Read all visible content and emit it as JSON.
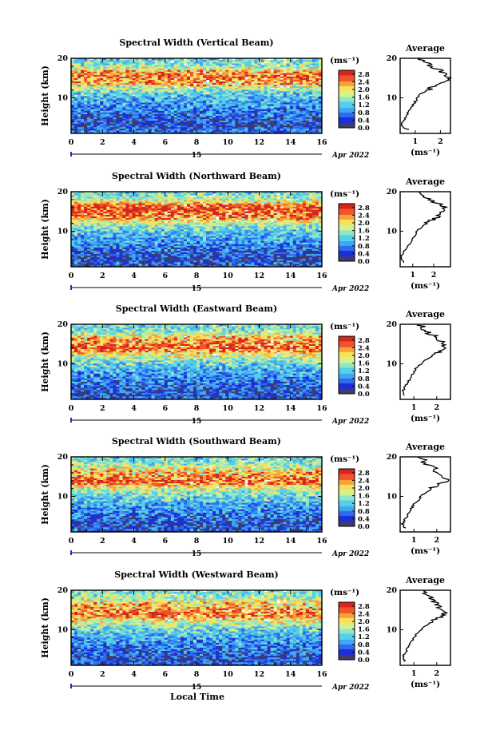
{
  "figure": {
    "x_axis_label": "Local Time",
    "date_label": "Apr 2022",
    "day_label": "15",
    "colorbar_unit": "(ms⁻¹)",
    "colorbar_ticks": [
      "0.0",
      "0.4",
      "0.8",
      "1.2",
      "1.6",
      "2.0",
      "2.4",
      "2.8"
    ],
    "colormap": [
      "#3d3d6b",
      "#1f2fd6",
      "#2d6df0",
      "#3fa8f2",
      "#55d0ea",
      "#8ee8c8",
      "#d8f08a",
      "#f8e058",
      "#f9a23a",
      "#f0552a",
      "#d8241f"
    ],
    "height_ylabel": "Height (km)",
    "height_ticks": [
      "10",
      "20"
    ],
    "time_ticks": [
      "0",
      "2",
      "4",
      "6",
      "8",
      "10",
      "12",
      "14",
      "16"
    ],
    "average_title": "Average",
    "average_unit": "(ms⁻¹)",
    "average_ticks": [
      "1",
      "2"
    ],
    "average_line_color": "#000000"
  },
  "chart_data": [
    {
      "type": "heatmap",
      "title": "Spectral Width (Vertical Beam)",
      "xlabel": "Local Time",
      "ylabel": "Height (km)",
      "xlim": [
        0,
        16
      ],
      "ylim": [
        1,
        20
      ],
      "clim": [
        0.0,
        3.0
      ],
      "x_ticks": [
        0,
        2,
        4,
        6,
        8,
        10,
        12,
        14,
        16
      ],
      "y_ticks": [
        10,
        20
      ],
      "colorbar_ticks": [
        0.0,
        0.4,
        0.8,
        1.2,
        1.6,
        2.0,
        2.4,
        2.8
      ],
      "profile_heights": [
        2,
        3,
        4,
        5,
        6,
        7,
        8,
        9,
        10,
        11,
        12,
        13,
        14,
        15,
        16,
        17,
        18,
        19,
        20
      ],
      "profile": [
        0.7,
        0.4,
        0.5,
        0.6,
        0.7,
        0.8,
        0.9,
        1.0,
        1.1,
        1.2,
        1.5,
        1.8,
        2.1,
        2.3,
        2.2,
        2.0,
        1.6,
        1.4,
        1.2
      ],
      "average": {
        "title": "Average",
        "xlim": [
          0.4,
          2.4
        ],
        "x_ticks": [
          1,
          2
        ],
        "xlabel": "(ms⁻¹)"
      }
    },
    {
      "type": "heatmap",
      "title": "Spectral Width (Northward Beam)",
      "xlabel": "Local Time",
      "ylabel": "Height (km)",
      "xlim": [
        0,
        16
      ],
      "ylim": [
        1,
        20
      ],
      "clim": [
        0.0,
        3.0
      ],
      "x_ticks": [
        0,
        2,
        4,
        6,
        8,
        10,
        12,
        14,
        16
      ],
      "y_ticks": [
        10,
        20
      ],
      "colorbar_ticks": [
        0.0,
        0.4,
        0.8,
        1.2,
        1.6,
        2.0,
        2.4,
        2.8
      ],
      "profile_heights": [
        2,
        3,
        4,
        5,
        6,
        7,
        8,
        9,
        10,
        11,
        12,
        13,
        14,
        15,
        16,
        17,
        18,
        19,
        20
      ],
      "profile": [
        0.6,
        0.4,
        0.5,
        0.6,
        0.7,
        0.9,
        1.0,
        1.1,
        1.2,
        1.4,
        1.7,
        2.0,
        2.3,
        2.5,
        2.6,
        2.2,
        1.7,
        1.5,
        1.3
      ],
      "average": {
        "title": "Average",
        "xlim": [
          0.4,
          2.8
        ],
        "x_ticks": [
          1,
          2
        ],
        "xlabel": "(ms⁻¹)"
      }
    },
    {
      "type": "heatmap",
      "title": "Spectral Width (Eastward Beam)",
      "xlabel": "Local Time",
      "ylabel": "Height (km)",
      "xlim": [
        0,
        16
      ],
      "ylim": [
        1,
        20
      ],
      "clim": [
        0.0,
        3.0
      ],
      "x_ticks": [
        0,
        2,
        4,
        6,
        8,
        10,
        12,
        14,
        16
      ],
      "y_ticks": [
        10,
        20
      ],
      "colorbar_ticks": [
        0.0,
        0.4,
        0.8,
        1.2,
        1.6,
        2.0,
        2.4,
        2.8
      ],
      "profile_heights": [
        2,
        3,
        4,
        5,
        6,
        7,
        8,
        9,
        10,
        11,
        12,
        13,
        14,
        15,
        16,
        17,
        18,
        19,
        20
      ],
      "profile": [
        0.6,
        0.5,
        0.6,
        0.7,
        0.8,
        0.9,
        1.0,
        1.1,
        1.3,
        1.5,
        1.8,
        2.1,
        2.4,
        2.3,
        2.1,
        1.9,
        1.6,
        1.4,
        1.3
      ],
      "average": {
        "title": "Average",
        "xlim": [
          0.4,
          2.6
        ],
        "x_ticks": [
          1,
          2
        ],
        "xlabel": "(ms⁻¹)"
      }
    },
    {
      "type": "heatmap",
      "title": "Spectral Width (Southward Beam)",
      "xlabel": "Local Time",
      "ylabel": "Height (km)",
      "xlim": [
        0,
        16
      ],
      "ylim": [
        1,
        20
      ],
      "clim": [
        0.0,
        3.0
      ],
      "x_ticks": [
        0,
        2,
        4,
        6,
        8,
        10,
        12,
        14,
        16
      ],
      "y_ticks": [
        10,
        20
      ],
      "colorbar_ticks": [
        0.0,
        0.4,
        0.8,
        1.2,
        1.6,
        2.0,
        2.4,
        2.8
      ],
      "profile_heights": [
        2,
        3,
        4,
        5,
        6,
        7,
        8,
        9,
        10,
        11,
        12,
        13,
        14,
        15,
        16,
        17,
        18,
        19,
        20
      ],
      "profile": [
        0.6,
        0.5,
        0.6,
        0.7,
        0.8,
        0.9,
        1.0,
        1.2,
        1.3,
        1.5,
        1.8,
        2.1,
        2.4,
        2.2,
        2.0,
        1.9,
        1.6,
        1.4,
        1.3
      ],
      "average": {
        "title": "Average",
        "xlim": [
          0.4,
          2.6
        ],
        "x_ticks": [
          1,
          2
        ],
        "xlabel": "(ms⁻¹)"
      }
    },
    {
      "type": "heatmap",
      "title": "Spectral Width (Westward Beam)",
      "xlabel": "Local Time",
      "ylabel": "Height (km)",
      "xlim": [
        0,
        16
      ],
      "ylim": [
        1,
        20
      ],
      "clim": [
        0.0,
        3.0
      ],
      "x_ticks": [
        0,
        2,
        4,
        6,
        8,
        10,
        12,
        14,
        16
      ],
      "y_ticks": [
        10,
        20
      ],
      "colorbar_ticks": [
        0.0,
        0.4,
        0.8,
        1.2,
        1.6,
        2.0,
        2.4,
        2.8
      ],
      "profile_heights": [
        2,
        3,
        4,
        5,
        6,
        7,
        8,
        9,
        10,
        11,
        12,
        13,
        14,
        15,
        16,
        17,
        18,
        19,
        20
      ],
      "profile": [
        0.6,
        0.5,
        0.6,
        0.7,
        0.8,
        0.9,
        1.0,
        1.1,
        1.3,
        1.5,
        1.8,
        2.1,
        2.3,
        2.2,
        2.0,
        1.9,
        1.7,
        1.5,
        1.3
      ],
      "average": {
        "title": "Average",
        "xlim": [
          0.4,
          2.6
        ],
        "x_ticks": [
          1,
          2
        ],
        "xlabel": "(ms⁻¹)"
      }
    }
  ]
}
